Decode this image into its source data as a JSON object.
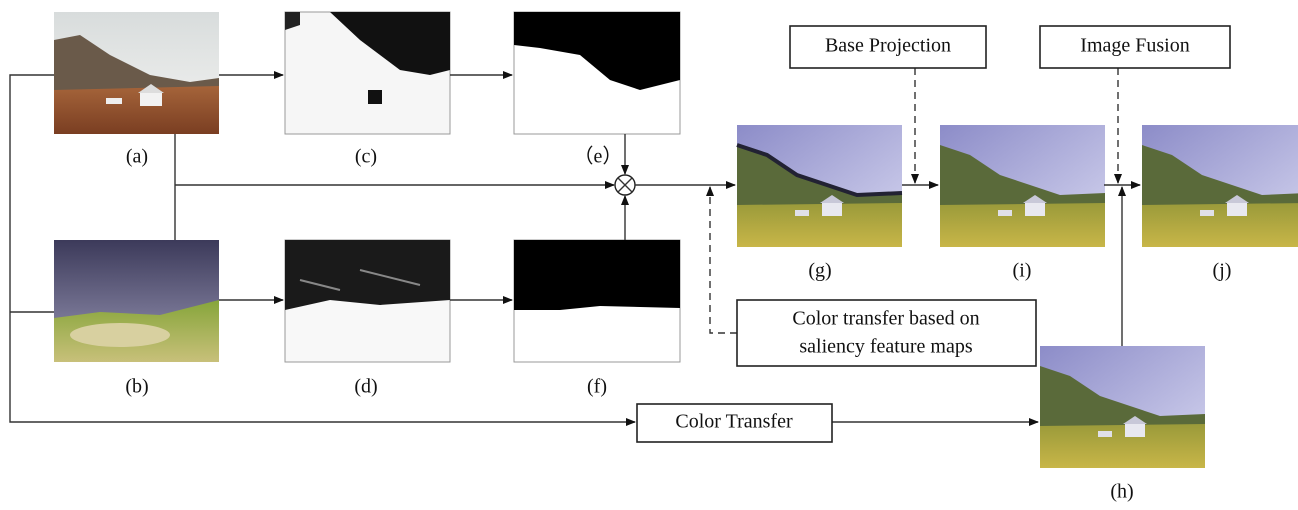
{
  "panels": [
    {
      "label": "(a)"
    },
    {
      "label": "(b)"
    },
    {
      "label": "(c)"
    },
    {
      "label": "(d)"
    },
    {
      "label": "（e）"
    },
    {
      "label": "(f)"
    },
    {
      "label": "(g)"
    },
    {
      "label": "(h)"
    },
    {
      "label": "(i)"
    },
    {
      "label": "(j)"
    }
  ],
  "boxes": [
    {
      "text": "Base Projection"
    },
    {
      "text": "Image Fusion"
    },
    {
      "lines": [
        "Color transfer based on",
        "saliency feature maps"
      ]
    },
    {
      "text": "Color Transfer"
    }
  ]
}
